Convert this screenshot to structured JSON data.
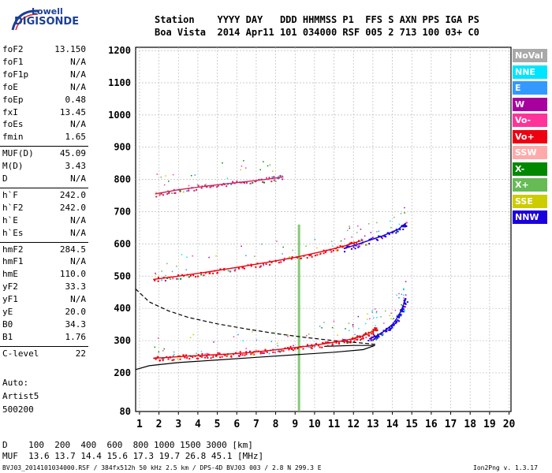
{
  "logo": {
    "line1": "Lowell",
    "line2": "DIGISONDE"
  },
  "header": {
    "row1": "Station    YYYY DAY   DDD HHMMSS P1  FFS S AXN PPS IGA PS",
    "row2": "Boa Vista  2014 Apr11 101 034000 RSF 005 2 713 100 03+ C0"
  },
  "params": [
    {
      "name": "foF2",
      "value": "13.150"
    },
    {
      "name": "foF1",
      "value": "N/A"
    },
    {
      "name": "foF1p",
      "value": "N/A"
    },
    {
      "name": "foE",
      "value": "N/A"
    },
    {
      "name": "foEp",
      "value": "0.48"
    },
    {
      "name": "fxI",
      "value": "13.45"
    },
    {
      "name": "foEs",
      "value": "N/A"
    },
    {
      "name": "fmin",
      "value": "1.65"
    },
    {
      "name": "MUF(D)",
      "value": "45.09"
    },
    {
      "name": "M(D)",
      "value": "3.43"
    },
    {
      "name": "D",
      "value": "N/A"
    },
    {
      "name": "h`F",
      "value": "242.0"
    },
    {
      "name": "h`F2",
      "value": "242.0"
    },
    {
      "name": "h`E",
      "value": "N/A"
    },
    {
      "name": "h`Es",
      "value": "N/A"
    },
    {
      "name": "hmF2",
      "value": "284.5"
    },
    {
      "name": "hmF1",
      "value": "N/A"
    },
    {
      "name": "hmE",
      "value": "110.0"
    },
    {
      "name": "yF2",
      "value": "33.3"
    },
    {
      "name": "yF1",
      "value": "N/A"
    },
    {
      "name": "yE",
      "value": "20.0"
    },
    {
      "name": "B0",
      "value": "34.3"
    },
    {
      "name": "B1",
      "value": "1.76"
    },
    {
      "name": "C-level",
      "value": "22"
    }
  ],
  "autoscaling": {
    "line1": "Auto:",
    "line2": "Artist5",
    "line3": "500200"
  },
  "legend": [
    {
      "label": "NoVal",
      "color": "#a9a9a9"
    },
    {
      "label": "NNE",
      "color": "#00e5ff"
    },
    {
      "label": "E",
      "color": "#3399ff"
    },
    {
      "label": "W",
      "color": "#a8009f"
    },
    {
      "label": "Vo-",
      "color": "#ff3399"
    },
    {
      "label": "Vo+",
      "color": "#ee0011"
    },
    {
      "label": "SSW",
      "color": "#ffaaaa"
    },
    {
      "label": "X-",
      "color": "#008800"
    },
    {
      "label": "X+",
      "color": "#66bb55"
    },
    {
      "label": "SSE",
      "color": "#cccc00"
    },
    {
      "label": "NNW",
      "color": "#1a00dd"
    }
  ],
  "bottom": {
    "d_line": "D    100  200  400  600  800 1000 1500 3000 [km]",
    "muf_line": "MUF  13.6 13.7 14.4 15.6 17.3 19.7 26.8 45.1 [MHz]",
    "file_info": "BVJ03_2014101034000.RSF / 384fx512h 50 kHz 2.5 km / DPS-4D BVJ03 003 / 2.8 N 299.3 E",
    "version": "Ion2Png v. 1.3.17"
  },
  "chart_data": {
    "type": "scatter",
    "title": "",
    "xlabel": "",
    "ylabel": "",
    "xlim": [
      0.8,
      20.1
    ],
    "ylim": [
      80,
      1210
    ],
    "x_ticks": [
      1,
      2,
      3,
      4,
      5,
      6,
      7,
      8,
      9,
      10,
      11,
      12,
      13,
      14,
      15,
      16,
      17,
      18,
      19,
      20
    ],
    "y_ticks": [
      80,
      200,
      300,
      400,
      500,
      600,
      700,
      800,
      900,
      1000,
      1100,
      1200
    ],
    "grid": true,
    "traces": [
      {
        "name": "F2 virtual height (O)",
        "color": "#ee0011",
        "x": [
          1.7,
          2.5,
          3.5,
          4.5,
          5.5,
          6.5,
          7.5,
          8.5,
          9.5,
          10.5,
          11.5,
          12.0,
          12.5,
          13.0,
          13.15
        ],
        "y": [
          245,
          248,
          252,
          255,
          258,
          262,
          268,
          275,
          282,
          290,
          300,
          306,
          315,
          328,
          340
        ]
      },
      {
        "name": "F2 X-mode",
        "color": "#1a00dd",
        "x": [
          12.8,
          13.2,
          13.6,
          14.0,
          14.3,
          14.5,
          14.7
        ],
        "y": [
          305,
          315,
          330,
          350,
          375,
          400,
          430
        ]
      },
      {
        "name": "2F2 second hop",
        "color": "#ee0011",
        "x": [
          1.7,
          3.0,
          4.5,
          6.0,
          7.5,
          9.0,
          10.5,
          11.5,
          12.5
        ],
        "y": [
          490,
          500,
          513,
          527,
          542,
          558,
          578,
          593,
          612
        ]
      },
      {
        "name": "2F2 X-mode",
        "color": "#1a00dd",
        "x": [
          11.5,
          12.5,
          13.5,
          14.3,
          14.7
        ],
        "y": [
          585,
          605,
          625,
          645,
          665
        ]
      },
      {
        "name": "3F2 third hop",
        "color": "#cc2266",
        "x": [
          1.8,
          3.0,
          4.5,
          6.0,
          7.5,
          8.4
        ],
        "y": [
          755,
          768,
          780,
          790,
          800,
          808
        ]
      }
    ],
    "profile_solid": {
      "x": [
        0.8,
        1.5,
        3,
        5,
        7,
        9,
        11,
        12.5,
        13.1,
        12.0,
        10.5
      ],
      "y": [
        210,
        222,
        232,
        240,
        248,
        256,
        264,
        272,
        285,
        285,
        282
      ]
    },
    "profile_dashed": {
      "x": [
        0.8,
        1.5,
        2.5,
        3.5,
        5,
        6.5,
        8,
        9.5,
        11,
        12.5,
        13.2
      ],
      "y": [
        460,
        420,
        392,
        372,
        352,
        336,
        322,
        310,
        300,
        292,
        288
      ]
    },
    "vertical_stripe": {
      "x": 9.2,
      "color": "#66bb55"
    }
  }
}
